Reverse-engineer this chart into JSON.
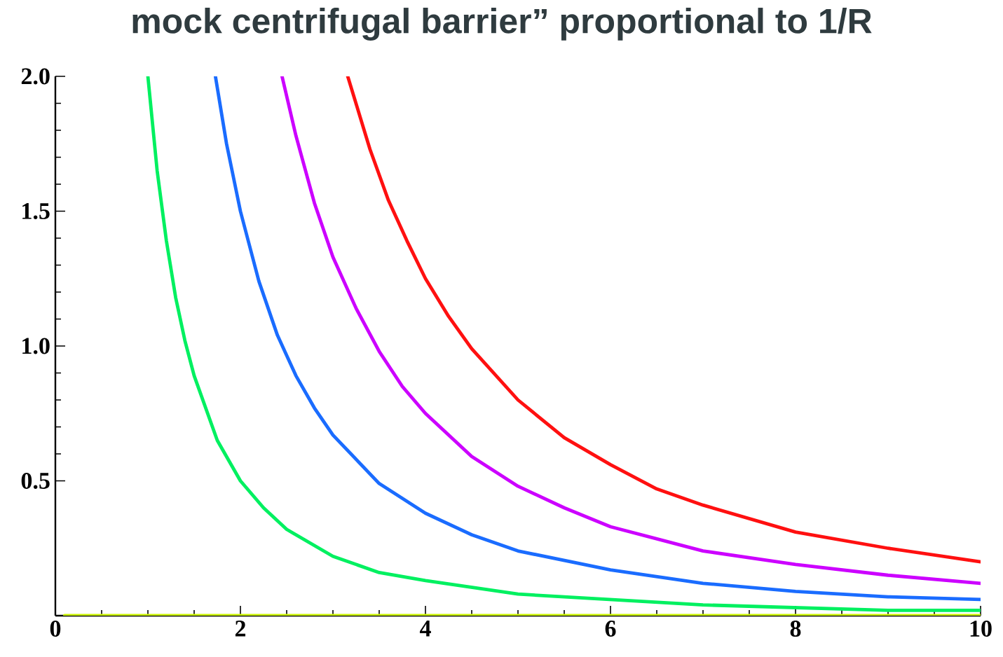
{
  "chart_data": {
    "type": "line",
    "title": "mock centrifugal barrier” proportional to 1/R",
    "xlim": [
      0,
      10
    ],
    "ylim": [
      0,
      2
    ],
    "xticks": [
      0,
      2,
      4,
      6,
      8,
      10
    ],
    "yticks": [
      0.5,
      {
        "value": 1,
        "label": "1.0"
      },
      1.5,
      {
        "value": 2,
        "label": "2.0"
      }
    ],
    "marker": "none",
    "line_style": "solid",
    "series": [
      {
        "color": "#c8f000",
        "x": [
          0.1,
          10
        ],
        "values": [
          0,
          0
        ]
      },
      {
        "color": "#00f060",
        "x": [
          1.0,
          1.1,
          1.2,
          1.3,
          1.4,
          1.5,
          1.75,
          2,
          2.25,
          2.5,
          3,
          3.5,
          4,
          5,
          6,
          7,
          8,
          9,
          10
        ],
        "values": [
          2.0,
          1.65,
          1.39,
          1.18,
          1.02,
          0.89,
          0.65,
          0.5,
          0.4,
          0.32,
          0.22,
          0.16,
          0.13,
          0.08,
          0.06,
          0.04,
          0.03,
          0.02,
          0.02
        ]
      },
      {
        "color": "#1a6cff",
        "x": [
          1.73,
          1.85,
          2,
          2.2,
          2.4,
          2.6,
          2.8,
          3,
          3.5,
          4,
          4.5,
          5,
          6,
          7,
          8,
          9,
          10
        ],
        "values": [
          2.0,
          1.75,
          1.5,
          1.24,
          1.04,
          0.89,
          0.77,
          0.67,
          0.49,
          0.38,
          0.3,
          0.24,
          0.17,
          0.12,
          0.09,
          0.07,
          0.06
        ]
      },
      {
        "color": "#cc00ff",
        "x": [
          2.45,
          2.6,
          2.8,
          3,
          3.25,
          3.5,
          3.75,
          4,
          4.5,
          5,
          5.5,
          6,
          7,
          8,
          9,
          10
        ],
        "values": [
          2.0,
          1.78,
          1.53,
          1.33,
          1.14,
          0.98,
          0.85,
          0.75,
          0.59,
          0.48,
          0.4,
          0.33,
          0.24,
          0.19,
          0.15,
          0.12
        ]
      },
      {
        "color": "#ff1010",
        "x": [
          3.16,
          3.4,
          3.6,
          3.8,
          4,
          4.25,
          4.5,
          5,
          5.5,
          6,
          6.5,
          7,
          8,
          9,
          10
        ],
        "values": [
          2.0,
          1.73,
          1.54,
          1.39,
          1.25,
          1.11,
          0.99,
          0.8,
          0.66,
          0.56,
          0.47,
          0.41,
          0.31,
          0.25,
          0.2
        ]
      }
    ]
  }
}
